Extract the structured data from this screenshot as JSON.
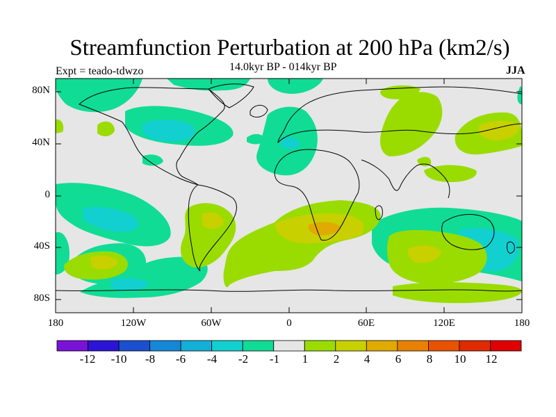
{
  "title": "Streamfunction Perturbation at 200 hPa (km2/s)",
  "subtitle": "14.0kyr BP - 014kyr BP",
  "experiment": "Expt = teado-tdwzo",
  "season": "JJA",
  "map": {
    "projection": "cylindrical equidistant",
    "background_color": "#e6e6e6",
    "lat_labels": [
      "80N",
      "40N",
      "0",
      "40S",
      "80S"
    ],
    "lon_labels": [
      "180",
      "120W",
      "60W",
      "0",
      "60E",
      "120E",
      "180"
    ]
  },
  "colorbar": {
    "colors": [
      "#7a12d8",
      "#2c14d6",
      "#1a50d0",
      "#1487d8",
      "#12b0d8",
      "#12d0d0",
      "#10dc96",
      "#e6e6e6",
      "#9adc00",
      "#c8d000",
      "#e0aa00",
      "#e88000",
      "#e85200",
      "#e02a00",
      "#e00000"
    ],
    "labels": [
      "-12",
      "-10",
      "-8",
      "-6",
      "-4",
      "-2",
      "-1",
      "1",
      "2",
      "4",
      "6",
      "8",
      "10",
      "12"
    ]
  }
}
